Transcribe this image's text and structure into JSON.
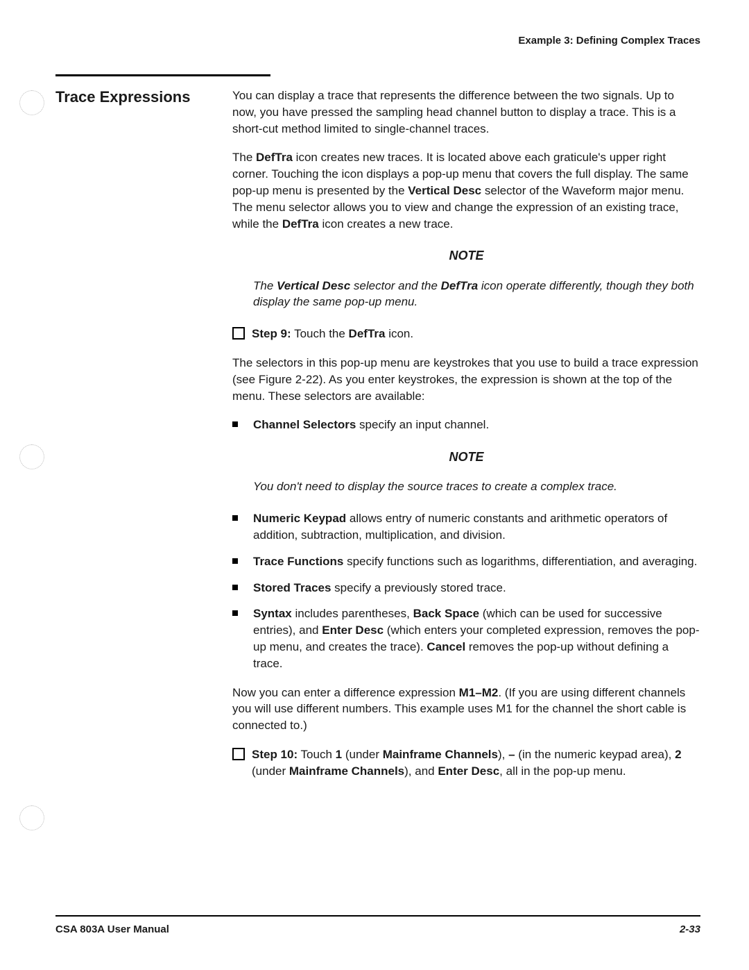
{
  "header": {
    "label": "Example 3: Defining Complex Traces"
  },
  "section_heading": "Trace Expressions",
  "p1": "You can display a trace that represents the difference between the two signals. Up to now, you have pressed the sampling head channel button to display a trace. This is a short-cut method limited to single-channel traces.",
  "p2a": "The ",
  "p2b": "DefTra",
  "p2c": " icon creates new traces. It is located above each graticule's upper right corner. Touching the icon displays a pop-up menu that covers the full display. The same pop-up menu is presented by the ",
  "p2d": "Vertical Desc",
  "p2e": " selector of the Waveform major menu. The menu selector allows you to view and change the expression of an existing trace, while the ",
  "p2f": "DefTra",
  "p2g": " icon creates a new trace.",
  "note_label": "NOTE",
  "note1a": "The ",
  "note1b": "Vertical Desc",
  "note1c": " selector and the ",
  "note1d": "DefTra",
  "note1e": " icon operate differently, though they both display the same pop-up menu.",
  "step9a": "Step 9:",
  "step9b": "  Touch the ",
  "step9c": "DefTra",
  "step9d": " icon.",
  "p3": "The selectors in this pop-up menu are keystrokes that you use to build a trace expression (see Figure 2-22). As you enter keystrokes, the expression is shown at the top of the menu. These selectors are available:",
  "b1a": "Channel Selectors",
  "b1b": " specify an input channel.",
  "note2": "You don't need to display the source traces to create a complex trace.",
  "b2a": "Numeric Keypad",
  "b2b": " allows entry of numeric constants and arithmetic operators of addition, subtraction, multiplication, and division.",
  "b3a": "Trace Functions",
  "b3b": " specify functions such as logarithms, differentiation, and averaging.",
  "b4a": "Stored Traces",
  "b4b": " specify a previously stored trace.",
  "b5a": "Syntax",
  "b5b": " includes parentheses, ",
  "b5c": "Back Space",
  "b5d": " (which can be used for successive entries), and ",
  "b5e": "Enter Desc",
  "b5f": " (which enters your completed expression, removes the pop-up menu, and creates the trace). ",
  "b5g": "Cancel",
  "b5h": " removes the pop-up without defining a trace.",
  "p4a": "Now you can enter a difference expression ",
  "p4b": "M1–M2",
  "p4c": ". (If you are using different channels you will use different numbers. This example uses M1 for the channel the short cable is connected to.)",
  "step10a": "Step 10:",
  "step10b": "  Touch ",
  "step10c": "1",
  "step10d": " (under ",
  "step10e": "Mainframe Channels",
  "step10f": "),  ",
  "step10g": "–",
  "step10h": " (in the numeric keypad area), ",
  "step10i": "2",
  "step10j": " (under ",
  "step10k": "Mainframe Channels",
  "step10l": "), and  ",
  "step10m": "Enter Desc",
  "step10n": ", all in the pop-up menu.",
  "footer": {
    "left": "CSA 803A User Manual",
    "right": "2-33"
  }
}
